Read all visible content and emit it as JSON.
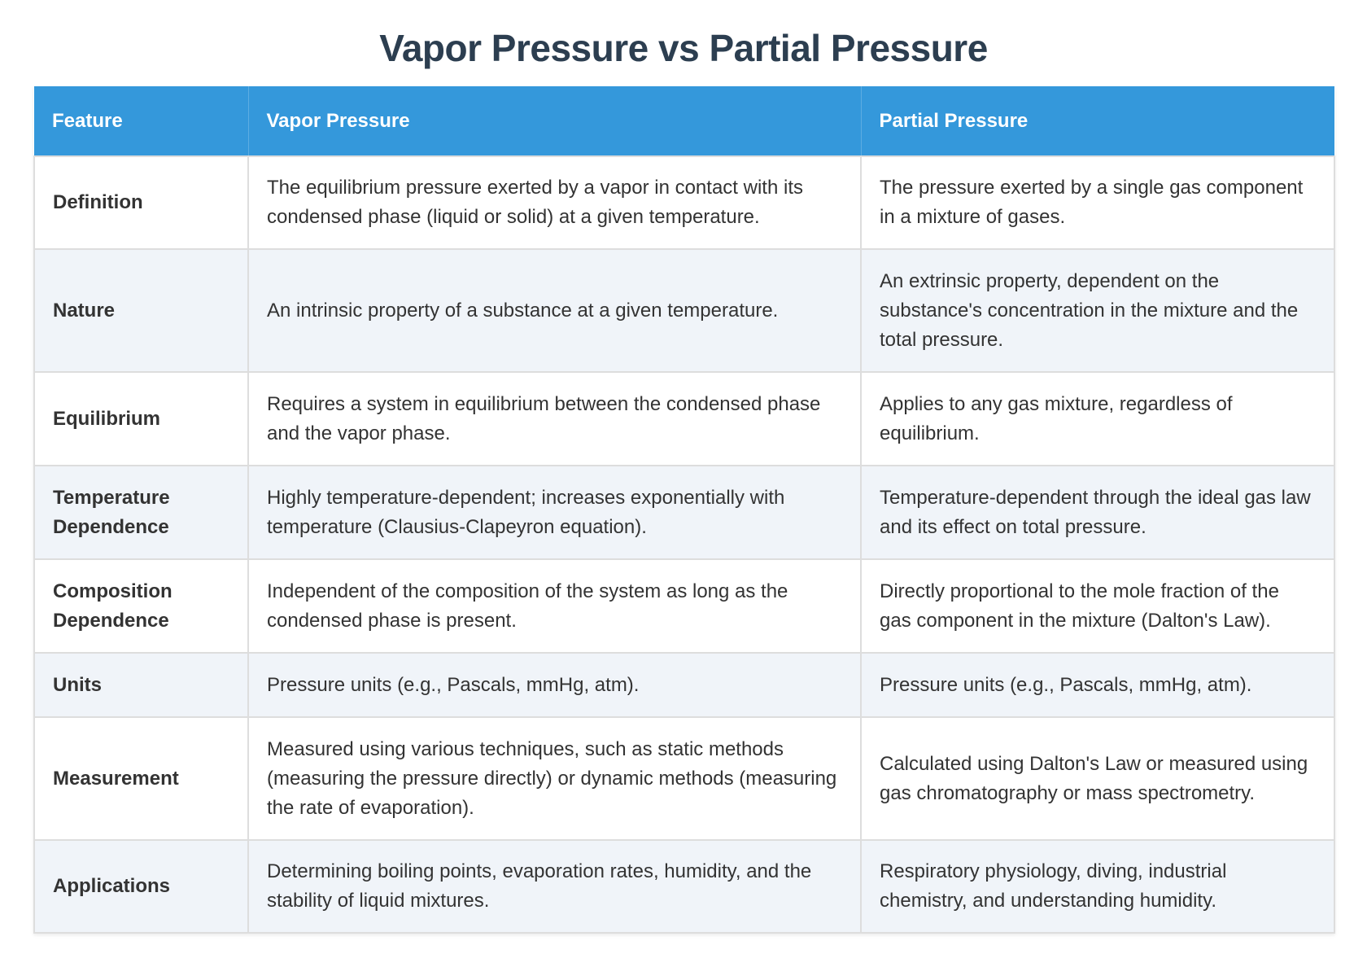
{
  "page": {
    "title": "Vapor Pressure vs Partial Pressure"
  },
  "colors": {
    "title": "#2c3e50",
    "header_bg": "#3498db",
    "header_text": "#ffffff",
    "row_alt_bg": "#f0f4f9",
    "border": "#dddddd",
    "body_text": "#333333"
  },
  "table": {
    "headers": [
      "Feature",
      "Vapor Pressure",
      "Partial Pressure"
    ],
    "rows": [
      {
        "feature": "Definition",
        "vapor": "The equilibrium pressure exerted by a vapor in contact with its condensed phase (liquid or solid) at a given temperature.",
        "partial": "The pressure exerted by a single gas component in a mixture of gases."
      },
      {
        "feature": "Nature",
        "vapor": "An intrinsic property of a substance at a given temperature.",
        "partial": "An extrinsic property, dependent on the substance's concentration in the mixture and the total pressure."
      },
      {
        "feature": "Equilibrium",
        "vapor": "Requires a system in equilibrium between the condensed phase and the vapor phase.",
        "partial": "Applies to any gas mixture, regardless of equilibrium."
      },
      {
        "feature": "Temperature Dependence",
        "vapor": "Highly temperature-dependent; increases exponentially with temperature (Clausius-Clapeyron equation).",
        "partial": "Temperature-dependent through the ideal gas law and its effect on total pressure."
      },
      {
        "feature": "Composition Dependence",
        "vapor": "Independent of the composition of the system as long as the condensed phase is present.",
        "partial": "Directly proportional to the mole fraction of the gas component in the mixture (Dalton's Law)."
      },
      {
        "feature": "Units",
        "vapor": "Pressure units (e.g., Pascals, mmHg, atm).",
        "partial": "Pressure units (e.g., Pascals, mmHg, atm)."
      },
      {
        "feature": "Measurement",
        "vapor": "Measured using various techniques, such as static methods (measuring the pressure directly) or dynamic methods (measuring the rate of evaporation).",
        "partial": "Calculated using Dalton's Law or measured using gas chromatography or mass spectrometry."
      },
      {
        "feature": "Applications",
        "vapor": "Determining boiling points, evaporation rates, humidity, and the stability of liquid mixtures.",
        "partial": "Respiratory physiology, diving, industrial chemistry, and understanding humidity."
      }
    ]
  }
}
